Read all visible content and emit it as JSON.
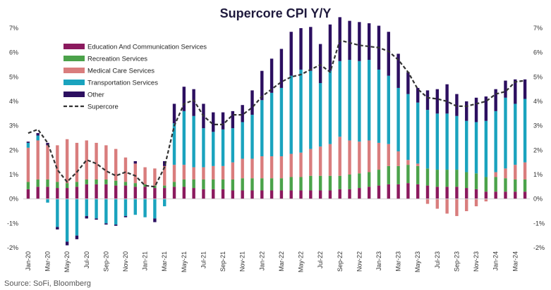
{
  "source": "Source: SoFi, Bloomberg",
  "chart_data": {
    "type": "bar",
    "title": "Supercore CPI Y/Y",
    "xlabel": "",
    "ylabel": "",
    "ylim": [
      -2,
      7
    ],
    "yticks": [
      "7%",
      "6%",
      "5%",
      "4%",
      "3%",
      "2%",
      "1%",
      "0%",
      "-1%",
      "-2%"
    ],
    "legend_position": "upper-left",
    "x_tick_labels": [
      "Jan-20",
      "Feb-20",
      "Mar-20",
      "Apr-20",
      "May-20",
      "Jun-20",
      "Jul-20",
      "Aug-20",
      "Sep-20",
      "Oct-20",
      "Nov-20",
      "Dec-20",
      "Jan-21",
      "Feb-21",
      "Mar-21",
      "Apr-21",
      "May-21",
      "Jun-21",
      "Jul-21",
      "Aug-21",
      "Sep-21",
      "Oct-21",
      "Nov-21",
      "Dec-21",
      "Jan-22",
      "Feb-22",
      "Mar-22",
      "Apr-22",
      "May-22",
      "Jun-22",
      "Jul-22",
      "Aug-22",
      "Sep-22",
      "Oct-22",
      "Nov-22",
      "Dec-22",
      "Jan-23",
      "Feb-23",
      "Mar-23",
      "Apr-23",
      "May-23",
      "Jun-23",
      "Jul-23",
      "Aug-23",
      "Sep-23",
      "Oct-23",
      "Nov-23",
      "Dec-23",
      "Jan-24",
      "Feb-24",
      "Mar-24",
      "Apr-24"
    ],
    "x_tick_every": 2,
    "categories": [
      "Jan-20",
      "Feb-20",
      "Mar-20",
      "Apr-20",
      "May-20",
      "Jun-20",
      "Jul-20",
      "Aug-20",
      "Sep-20",
      "Oct-20",
      "Nov-20",
      "Dec-20",
      "Jan-21",
      "Feb-21",
      "Mar-21",
      "Apr-21",
      "May-21",
      "Jun-21",
      "Jul-21",
      "Aug-21",
      "Sep-21",
      "Oct-21",
      "Nov-21",
      "Dec-21",
      "Jan-22",
      "Feb-22",
      "Mar-22",
      "Apr-22",
      "May-22",
      "Jun-22",
      "Jul-22",
      "Aug-22",
      "Sep-22",
      "Oct-22",
      "Nov-22",
      "Dec-22",
      "Jan-23",
      "Feb-23",
      "Mar-23",
      "Apr-23",
      "May-23",
      "Jun-23",
      "Jul-23",
      "Aug-23",
      "Sep-23",
      "Oct-23",
      "Nov-23",
      "Dec-23",
      "Jan-24",
      "Feb-24",
      "Mar-24",
      "Apr-24"
    ],
    "series": [
      {
        "name": "Education And Communication Services",
        "color": "#8b1a5e",
        "kind": "bar",
        "values": [
          0.4,
          0.5,
          0.5,
          0.45,
          0.45,
          0.5,
          0.6,
          0.6,
          0.6,
          0.55,
          0.55,
          0.5,
          0.5,
          0.45,
          0.45,
          0.5,
          0.5,
          0.45,
          0.4,
          0.4,
          0.4,
          0.35,
          0.35,
          0.35,
          0.35,
          0.35,
          0.35,
          0.35,
          0.35,
          0.35,
          0.35,
          0.35,
          0.4,
          0.4,
          0.45,
          0.5,
          0.55,
          0.6,
          0.6,
          0.65,
          0.6,
          0.55,
          0.5,
          0.5,
          0.5,
          0.45,
          0.4,
          0.3,
          0.3,
          0.3,
          0.3,
          0.3
        ]
      },
      {
        "name": "Recreation Services",
        "color": "#4ba24a",
        "kind": "bar",
        "values": [
          0.3,
          0.3,
          0.3,
          0.25,
          0.2,
          0.2,
          0.2,
          0.2,
          0.2,
          0.2,
          0.15,
          0.15,
          0.1,
          0.1,
          0.1,
          0.2,
          0.3,
          0.35,
          0.4,
          0.4,
          0.4,
          0.45,
          0.5,
          0.5,
          0.5,
          0.5,
          0.5,
          0.55,
          0.55,
          0.6,
          0.6,
          0.6,
          0.55,
          0.6,
          0.6,
          0.6,
          0.65,
          0.75,
          0.75,
          0.75,
          0.75,
          0.7,
          0.7,
          0.7,
          0.7,
          0.65,
          0.65,
          0.6,
          0.6,
          0.55,
          0.5,
          0.5
        ]
      },
      {
        "name": "Medical Care Services",
        "color": "#d97d7d",
        "kind": "bar",
        "values": [
          1.4,
          1.6,
          1.4,
          1.5,
          1.8,
          1.6,
          1.6,
          1.5,
          1.4,
          1.3,
          1.0,
          0.8,
          0.7,
          0.7,
          0.8,
          0.7,
          0.6,
          0.5,
          0.5,
          0.55,
          0.55,
          0.7,
          0.8,
          0.8,
          0.9,
          0.9,
          0.9,
          0.95,
          1.0,
          1.1,
          1.2,
          1.3,
          1.6,
          1.4,
          1.3,
          1.3,
          1.1,
          0.9,
          0.6,
          0.2,
          0.1,
          -0.2,
          -0.4,
          -0.6,
          -0.7,
          -0.5,
          -0.3,
          -0.1,
          0.2,
          0.4,
          0.6,
          0.7
        ]
      },
      {
        "name": "Transportation Services",
        "color": "#1aa3be",
        "kind": "bar",
        "values": [
          0.2,
          0.2,
          -0.15,
          -1.15,
          -1.75,
          -1.5,
          -0.7,
          -0.8,
          -1.0,
          -1.05,
          -0.7,
          -0.65,
          -0.75,
          -0.8,
          -0.3,
          1.7,
          2.2,
          2.1,
          1.6,
          1.4,
          1.5,
          1.4,
          1.5,
          1.8,
          2.3,
          2.6,
          2.8,
          3.2,
          3.4,
          3.2,
          2.6,
          3.0,
          3.1,
          3.3,
          3.3,
          3.3,
          3.0,
          2.8,
          2.6,
          2.7,
          2.5,
          2.4,
          2.3,
          2.3,
          2.2,
          2.1,
          2.1,
          2.3,
          2.5,
          2.9,
          2.5,
          2.6
        ]
      },
      {
        "name": "Other",
        "color": "#2c0f60",
        "kind": "bar",
        "values": [
          0.05,
          0.1,
          0.1,
          -0.1,
          -0.15,
          -0.15,
          -0.1,
          -0.05,
          -0.05,
          -0.05,
          -0.05,
          0.1,
          0.0,
          -0.15,
          0.2,
          0.8,
          1.0,
          1.1,
          1.0,
          0.8,
          0.7,
          0.7,
          0.7,
          1.0,
          1.2,
          1.4,
          1.6,
          1.8,
          1.7,
          1.8,
          1.6,
          1.9,
          1.8,
          1.6,
          1.6,
          1.5,
          1.8,
          1.8,
          1.4,
          0.9,
          0.6,
          0.8,
          1.0,
          1.2,
          0.9,
          0.8,
          1.0,
          1.0,
          0.9,
          0.7,
          1.0,
          0.8
        ]
      },
      {
        "name": "Supercore",
        "color": "#333333",
        "kind": "line",
        "values": [
          2.7,
          2.85,
          2.3,
          1.2,
          0.7,
          1.1,
          1.6,
          1.45,
          1.15,
          0.95,
          1.1,
          0.95,
          0.55,
          0.5,
          1.3,
          3.0,
          3.9,
          4.05,
          3.4,
          3.05,
          3.05,
          3.45,
          3.45,
          3.75,
          4.2,
          4.5,
          4.8,
          5.0,
          5.1,
          5.3,
          5.5,
          5.2,
          6.5,
          6.4,
          6.3,
          6.25,
          6.2,
          6.05,
          5.7,
          5.2,
          4.5,
          4.15,
          4.1,
          4.0,
          3.8,
          3.8,
          3.9,
          4.0,
          4.3,
          4.4,
          4.8,
          4.85
        ]
      }
    ]
  }
}
